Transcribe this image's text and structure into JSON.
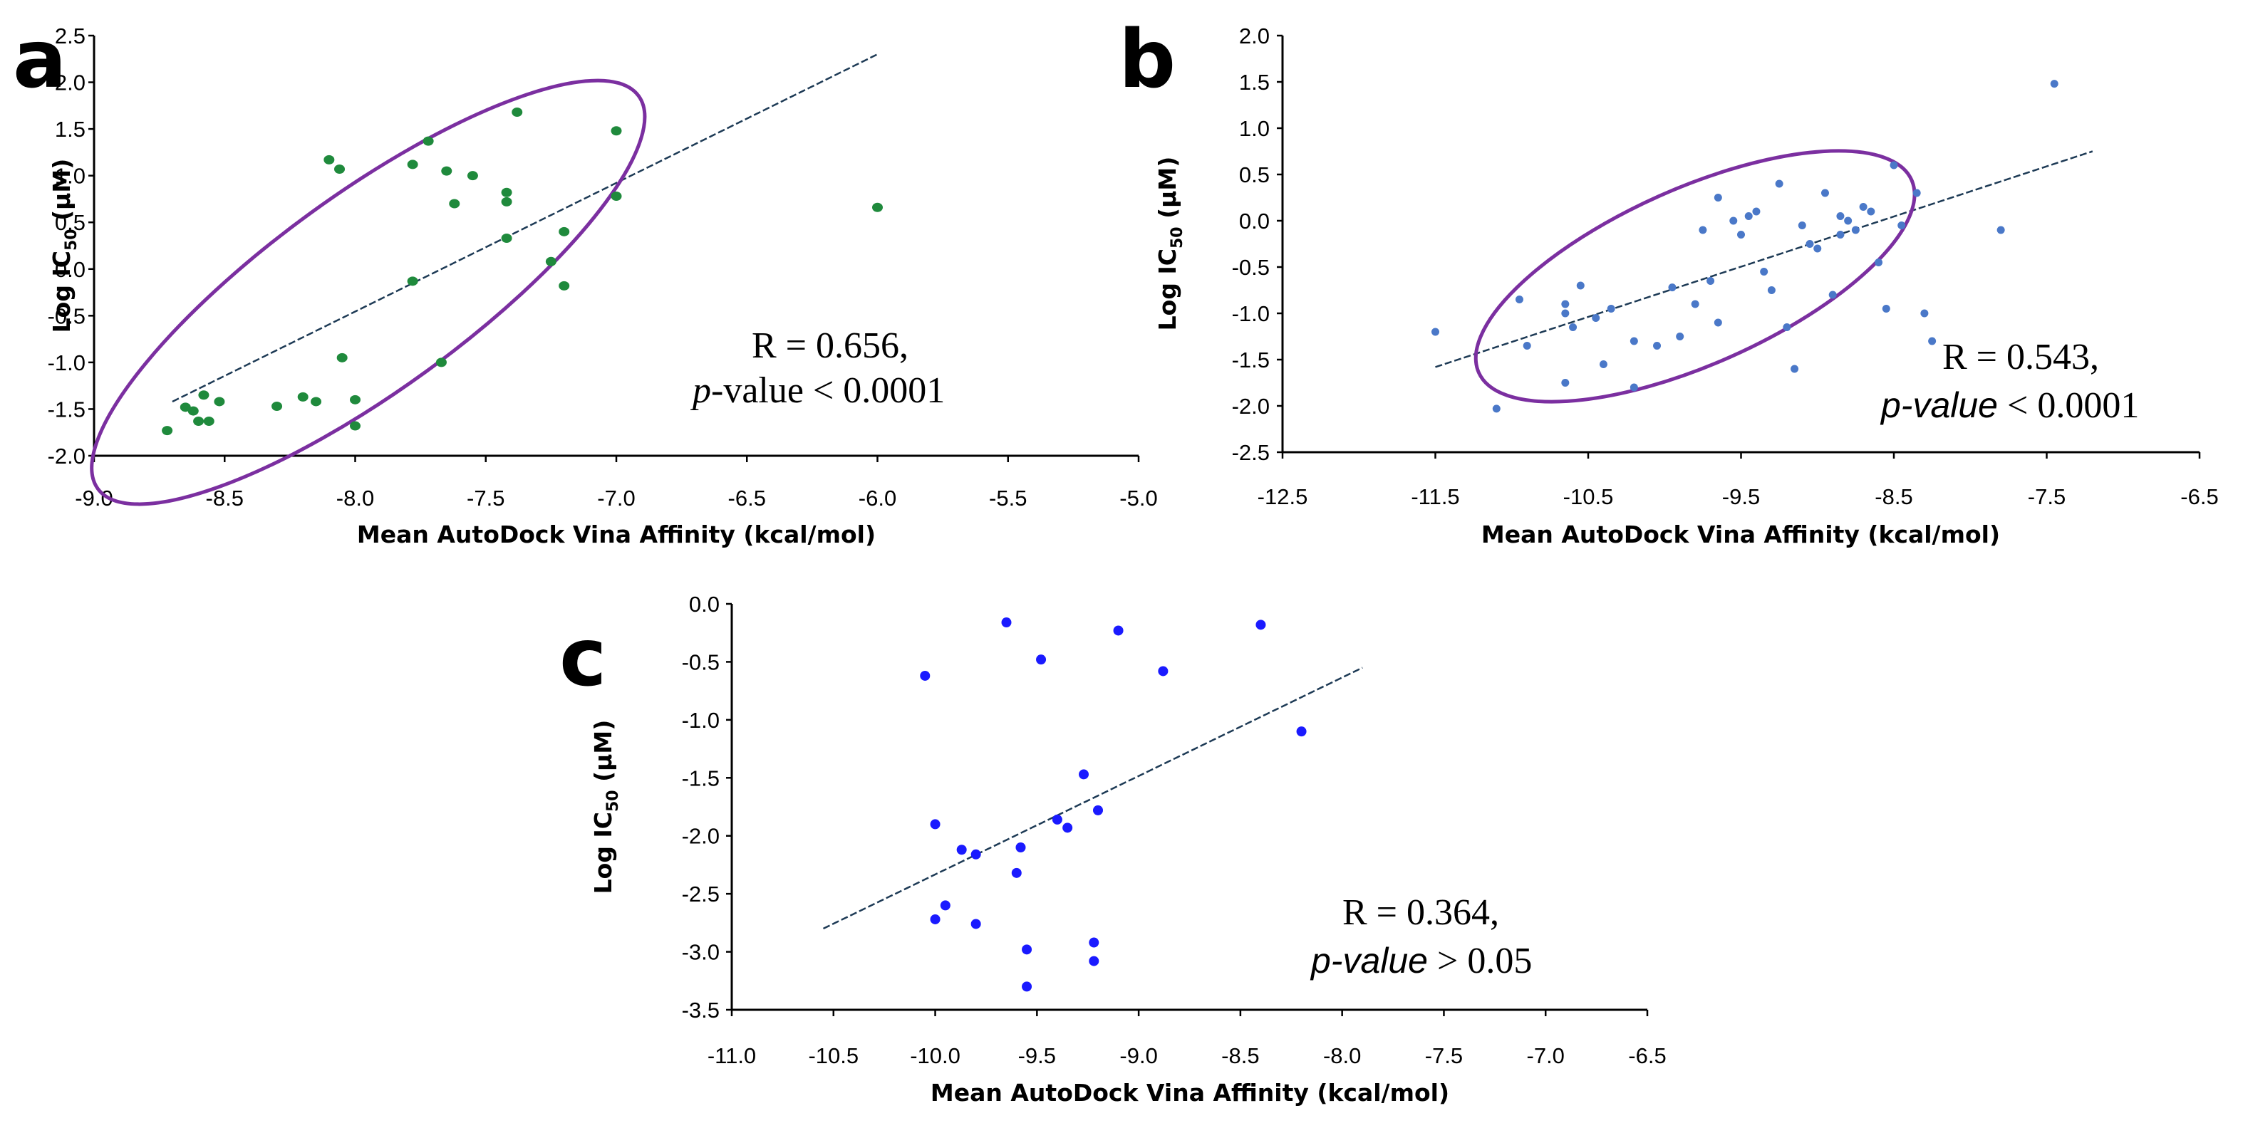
{
  "chart_data": [
    {
      "panel": "a",
      "type": "scatter",
      "xlabel": "Mean AutoDock Vina Affinity (kcal/mol)",
      "ylabel": "Log IC50 (μM)",
      "ylabel_main": "Log IC",
      "ylabel_sub": "50",
      "ylabel_unit": " (μM)",
      "xlim": [
        -9.0,
        -5.0
      ],
      "ylim": [
        -2.0,
        2.5
      ],
      "xticks": [
        -9.0,
        -8.5,
        -8.0,
        -7.5,
        -7.0,
        -6.5,
        -6.0,
        -5.5,
        -5.0
      ],
      "yticks": [
        -2.0,
        -1.5,
        -1.0,
        -0.5,
        0.0,
        0.5,
        1.0,
        1.5,
        2.0,
        2.5
      ],
      "point_color": "#1f8a3c",
      "points": [
        [
          -8.72,
          -1.73
        ],
        [
          -8.65,
          -1.48
        ],
        [
          -8.62,
          -1.52
        ],
        [
          -8.6,
          -1.63
        ],
        [
          -8.58,
          -1.35
        ],
        [
          -8.56,
          -1.63
        ],
        [
          -8.52,
          -1.42
        ],
        [
          -8.3,
          -1.47
        ],
        [
          -8.2,
          -1.37
        ],
        [
          -8.15,
          -1.42
        ],
        [
          -8.05,
          -0.95
        ],
        [
          -8.0,
          -1.4
        ],
        [
          -8.0,
          -1.68
        ],
        [
          -8.1,
          1.17
        ],
        [
          -8.06,
          1.07
        ],
        [
          -7.78,
          1.12
        ],
        [
          -7.72,
          1.37
        ],
        [
          -7.65,
          1.05
        ],
        [
          -7.62,
          0.7
        ],
        [
          -7.55,
          1.0
        ],
        [
          -7.42,
          0.82
        ],
        [
          -7.42,
          0.72
        ],
        [
          -7.42,
          0.33
        ],
        [
          -7.38,
          1.68
        ],
        [
          -7.25,
          0.08
        ],
        [
          -7.2,
          0.4
        ],
        [
          -7.2,
          -0.18
        ],
        [
          -7.0,
          1.48
        ],
        [
          -7.0,
          0.78
        ],
        [
          -7.78,
          -0.13
        ],
        [
          -7.67,
          -1.0
        ],
        [
          -6.0,
          0.66
        ]
      ],
      "trendline": {
        "x": [
          -8.7,
          -6.0
        ],
        "y": [
          -1.42,
          2.3
        ]
      },
      "ellipse": {
        "cx": -7.95,
        "cy": -0.25,
        "rx_data": 1.28,
        "ry_data": 1.05,
        "rotation_deg": -36,
        "color": "#7b2fa0"
      },
      "annotation": {
        "line1": "R = 0.656,",
        "line2_italic": "p",
        "line2_rest": "-value < 0.0001"
      }
    },
    {
      "panel": "b",
      "type": "scatter",
      "xlabel": "Mean AutoDock Vina Affinity (kcal/mol)",
      "ylabel": "Log IC50 (μM)",
      "ylabel_main": "Log IC",
      "ylabel_sub": "50",
      "ylabel_unit": " (μM)",
      "xlim": [
        -12.5,
        -6.5
      ],
      "ylim": [
        -2.5,
        2.0
      ],
      "xticks": [
        -12.5,
        -11.5,
        -10.5,
        -9.5,
        -8.5,
        -7.5,
        -6.5
      ],
      "yticks": [
        -2.5,
        -2.0,
        -1.5,
        -1.0,
        -0.5,
        0.0,
        0.5,
        1.0,
        1.5,
        2.0
      ],
      "point_color": "#4a78c8",
      "points": [
        [
          -11.5,
          -1.2
        ],
        [
          -11.1,
          -2.03
        ],
        [
          -10.95,
          -0.85
        ],
        [
          -10.9,
          -1.35
        ],
        [
          -10.65,
          -0.9
        ],
        [
          -10.65,
          -1.0
        ],
        [
          -10.6,
          -1.15
        ],
        [
          -10.55,
          -0.7
        ],
        [
          -10.65,
          -1.75
        ],
        [
          -10.45,
          -1.05
        ],
        [
          -10.4,
          -1.55
        ],
        [
          -10.35,
          -0.95
        ],
        [
          -10.2,
          -1.3
        ],
        [
          -10.2,
          -1.8
        ],
        [
          -10.05,
          -1.35
        ],
        [
          -9.95,
          -0.72
        ],
        [
          -9.9,
          -1.25
        ],
        [
          -9.8,
          -0.9
        ],
        [
          -9.75,
          -0.1
        ],
        [
          -9.7,
          -0.65
        ],
        [
          -9.65,
          -1.1
        ],
        [
          -9.55,
          0.0
        ],
        [
          -9.5,
          -0.15
        ],
        [
          -9.45,
          0.05
        ],
        [
          -9.4,
          0.1
        ],
        [
          -9.35,
          -0.55
        ],
        [
          -9.3,
          -0.75
        ],
        [
          -9.25,
          0.4
        ],
        [
          -9.2,
          -1.15
        ],
        [
          -9.15,
          -1.6
        ],
        [
          -9.1,
          -0.05
        ],
        [
          -9.05,
          -0.25
        ],
        [
          -9.0,
          -0.3
        ],
        [
          -8.95,
          0.3
        ],
        [
          -8.9,
          -0.8
        ],
        [
          -8.85,
          -0.15
        ],
        [
          -8.85,
          0.05
        ],
        [
          -8.8,
          0.0
        ],
        [
          -8.75,
          -0.1
        ],
        [
          -8.7,
          0.15
        ],
        [
          -8.65,
          0.1
        ],
        [
          -8.6,
          -0.45
        ],
        [
          -8.55,
          -0.95
        ],
        [
          -8.5,
          0.6
        ],
        [
          -8.45,
          -0.05
        ],
        [
          -8.3,
          -1.0
        ],
        [
          -8.25,
          -1.3
        ],
        [
          -7.8,
          -0.1
        ],
        [
          -7.45,
          1.48
        ],
        [
          -9.65,
          0.25
        ],
        [
          -8.35,
          0.3
        ]
      ],
      "trendline": {
        "x": [
          -11.5,
          -7.2
        ],
        "y": [
          -1.58,
          0.75
        ]
      },
      "ellipse": {
        "cx": -9.8,
        "cy": -0.6,
        "rx_data": 1.55,
        "ry_data": 0.95,
        "rotation_deg": -24,
        "color": "#7b2fa0"
      },
      "annotation": {
        "line1": "R = 0.543,",
        "line2_italic": "p-value",
        "line2_rest": " < 0.0001"
      }
    },
    {
      "panel": "c",
      "type": "scatter",
      "xlabel": "Mean AutoDock Vina Affinity (kcal/mol)",
      "ylabel": "Log IC50 (μM)",
      "ylabel_main": "Log IC",
      "ylabel_sub": "50",
      "ylabel_unit": " (μM)",
      "xlim": [
        -11.0,
        -6.5
      ],
      "ylim": [
        -3.5,
        0.0
      ],
      "xticks": [
        -11.0,
        -10.5,
        -10.0,
        -9.5,
        -9.0,
        -8.5,
        -8.0,
        -7.5,
        -7.0,
        -6.5
      ],
      "yticks": [
        -3.5,
        -3.0,
        -2.5,
        -2.0,
        -1.5,
        -1.0,
        -0.5,
        0.0
      ],
      "point_color": "#1a1aff",
      "points": [
        [
          -10.05,
          -0.62
        ],
        [
          -10.0,
          -1.9
        ],
        [
          -10.0,
          -2.72
        ],
        [
          -9.95,
          -2.6
        ],
        [
          -9.87,
          -2.12
        ],
        [
          -9.8,
          -2.16
        ],
        [
          -9.8,
          -2.76
        ],
        [
          -9.65,
          -0.16
        ],
        [
          -9.6,
          -2.32
        ],
        [
          -9.58,
          -2.1
        ],
        [
          -9.55,
          -2.98
        ],
        [
          -9.55,
          -3.3
        ],
        [
          -9.48,
          -0.48
        ],
        [
          -9.4,
          -1.86
        ],
        [
          -9.35,
          -1.93
        ],
        [
          -9.27,
          -1.47
        ],
        [
          -9.22,
          -2.92
        ],
        [
          -9.22,
          -3.08
        ],
        [
          -9.2,
          -1.78
        ],
        [
          -9.1,
          -0.23
        ],
        [
          -8.88,
          -0.58
        ],
        [
          -8.4,
          -0.18
        ],
        [
          -8.2,
          -1.1
        ]
      ],
      "trendline": {
        "x": [
          -10.55,
          -7.9
        ],
        "y": [
          -2.8,
          -0.55
        ]
      },
      "annotation": {
        "line1": "R = 0.364,",
        "line2_italic": "p-value",
        "line2_rest": " > 0.05"
      }
    }
  ]
}
